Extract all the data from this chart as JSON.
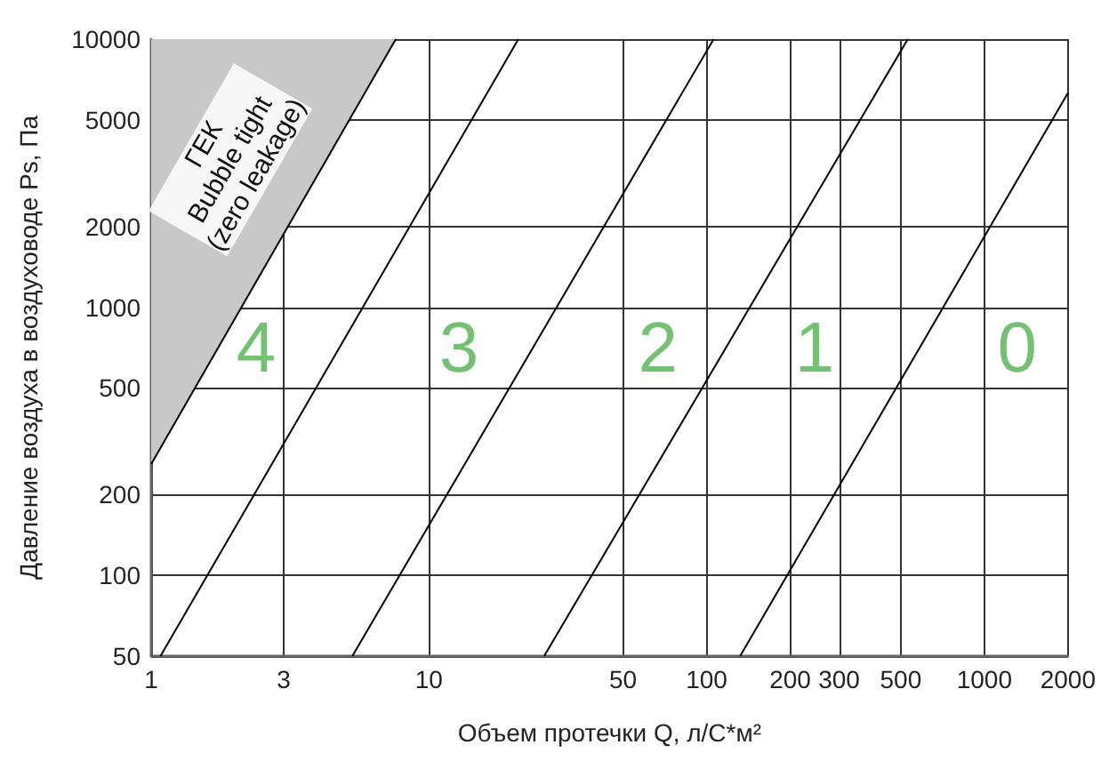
{
  "chart_data": {
    "type": "line",
    "xlabel": "Объем протечки Q, л/С*м²",
    "ylabel": "Давление воздуха в воздуховоде Ps, Па",
    "log": "xy",
    "grid": true,
    "legend": false,
    "marker": "none",
    "line_style": "solid",
    "xlim": [
      1,
      2000
    ],
    "ylim": [
      50,
      10000
    ],
    "xticks": [
      1,
      3,
      10,
      50,
      100,
      200,
      300,
      500,
      1000,
      2000
    ],
    "yticks": [
      50,
      100,
      200,
      500,
      1000,
      2000,
      5000,
      10000
    ],
    "series": [
      {
        "type": "area",
        "name": "ГЕК Bubble tight (zero leakage)",
        "color": "#c8c8c8",
        "x": [
          1,
          7.6
        ],
        "values": [
          260,
          10000
        ]
      },
      {
        "color": "#000000",
        "x": [
          1.08,
          21
        ],
        "values": [
          50,
          10000
        ]
      },
      {
        "color": "#000000",
        "x": [
          5.3,
          106
        ],
        "values": [
          50,
          10000
        ]
      },
      {
        "color": "#000000",
        "x": [
          26,
          530
        ],
        "values": [
          50,
          10000
        ]
      },
      {
        "color": "#000000",
        "x": [
          132,
          2000
        ],
        "values": [
          50,
          6300
        ]
      }
    ],
    "annotations": [
      "4",
      "3",
      "2",
      "1",
      "0"
    ]
  }
}
